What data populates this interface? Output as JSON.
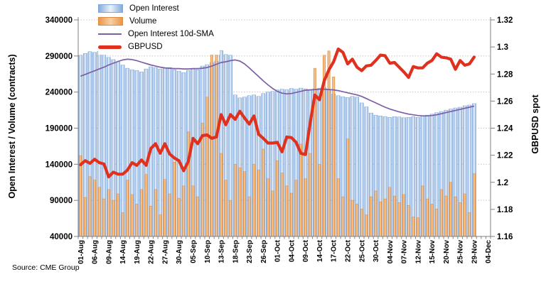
{
  "source": "Source: CME Group",
  "chart_data": {
    "type": "combo",
    "subtype": "bars+lines, dual y-axes",
    "grid": "horizontal-dotted",
    "legend_position": "top-left-inside",
    "axes": {
      "left": {
        "label": "Open Interest / Volume (contracts)",
        "min": 40000,
        "max": 340000,
        "step": 50000,
        "tick_labels": [
          "340000",
          "290000",
          "240000",
          "190000",
          "140000",
          "90000",
          "40000"
        ]
      },
      "right": {
        "label": "GBPUSD spot",
        "min": 1.16,
        "max": 1.32,
        "step": 0.02,
        "tick_labels": [
          "1.32",
          "1.3",
          "1.28",
          "1.26",
          "1.24",
          "1.22",
          "1.2",
          "1.18",
          "1.16"
        ]
      }
    },
    "x_axis": {
      "tick_labels": [
        "01-Aug",
        "06-Aug",
        "09-Aug",
        "14-Aug",
        "19-Aug",
        "22-Aug",
        "27-Aug",
        "30-Aug",
        "05-Sep",
        "10-Sep",
        "13-Sep",
        "18-Sep",
        "23-Sep",
        "26-Sep",
        "01-Oct",
        "04-Oct",
        "09-Oct",
        "14-Oct",
        "17-Oct",
        "22-Oct",
        "25-Oct",
        "30-Oct",
        "04-Nov",
        "07-Nov",
        "12-Nov",
        "15-Nov",
        "20-Nov",
        "25-Nov",
        "29-Nov",
        "04-Dec"
      ],
      "label_every": 3,
      "total_slots": 88
    },
    "categories": [
      "01-Aug",
      "02-Aug",
      "05-Aug",
      "06-Aug",
      "07-Aug",
      "08-Aug",
      "09-Aug",
      "12-Aug",
      "13-Aug",
      "14-Aug",
      "15-Aug",
      "16-Aug",
      "19-Aug",
      "20-Aug",
      "21-Aug",
      "22-Aug",
      "23-Aug",
      "26-Aug",
      "27-Aug",
      "28-Aug",
      "29-Aug",
      "30-Aug",
      "03-Sep",
      "04-Sep",
      "05-Sep",
      "06-Sep",
      "09-Sep",
      "10-Sep",
      "11-Sep",
      "12-Sep",
      "13-Sep",
      "16-Sep",
      "17-Sep",
      "18-Sep",
      "19-Sep",
      "20-Sep",
      "23-Sep",
      "24-Sep",
      "25-Sep",
      "26-Sep",
      "27-Sep",
      "30-Sep",
      "01-Oct",
      "02-Oct",
      "03-Oct",
      "04-Oct",
      "07-Oct",
      "08-Oct",
      "09-Oct",
      "10-Oct",
      "11-Oct",
      "14-Oct",
      "15-Oct",
      "16-Oct",
      "17-Oct",
      "18-Oct",
      "21-Oct",
      "22-Oct",
      "23-Oct",
      "24-Oct",
      "25-Oct",
      "28-Oct",
      "29-Oct",
      "30-Oct",
      "31-Oct",
      "01-Nov",
      "04-Nov",
      "05-Nov",
      "06-Nov",
      "07-Nov",
      "08-Nov",
      "11-Nov",
      "12-Nov",
      "13-Nov",
      "14-Nov",
      "15-Nov",
      "18-Nov",
      "19-Nov",
      "20-Nov",
      "21-Nov",
      "22-Nov",
      "25-Nov",
      "26-Nov",
      "27-Nov",
      "29-Nov"
    ],
    "series": [
      {
        "name": "Open Interest",
        "type": "bar",
        "axis": "left",
        "color": "#86ACDC",
        "values": [
          291000,
          293500,
          296000,
          295000,
          296500,
          294000,
          288000,
          285000,
          282000,
          277500,
          273000,
          271000,
          270000,
          268000,
          272000,
          275000,
          274000,
          272000,
          273000,
          274000,
          271000,
          269000,
          267000,
          270000,
          272000,
          271000,
          276000,
          278000,
          281000,
          283000,
          297500,
          292000,
          291000,
          236000,
          232000,
          233000,
          235000,
          236000,
          234000,
          238000,
          240000,
          241000,
          243000,
          244000,
          243500,
          245000,
          244000,
          245500,
          244500,
          243500,
          244500,
          245500,
          246000,
          243500,
          237500,
          235000,
          233500,
          232500,
          234000,
          233000,
          225000,
          219500,
          211000,
          208000,
          207000,
          206000,
          205000,
          206000,
          205500,
          204500,
          205000,
          206000,
          205000,
          207000,
          208000,
          209500,
          211500,
          213000,
          215000,
          216500,
          218000,
          219000,
          221000,
          222000,
          224000
        ]
      },
      {
        "name": "Volume",
        "type": "bar",
        "axis": "left",
        "color": "#E8964B",
        "values": [
          152000,
          94000,
          123000,
          118000,
          108000,
          92000,
          105000,
          90000,
          99000,
          73000,
          118000,
          98000,
          85000,
          105000,
          126000,
          82000,
          105000,
          70000,
          119000,
          99000,
          143000,
          93000,
          110000,
          185000,
          110000,
          95000,
          197000,
          233000,
          297000,
          297000,
          155000,
          118000,
          90000,
          140000,
          135000,
          130000,
          95000,
          140000,
          132000,
          161000,
          120000,
          103000,
          145000,
          128000,
          110000,
          100000,
          118000,
          168000,
          120000,
          155000,
          273000,
          140000,
          291000,
          297000,
          261000,
          120000,
          95000,
          175000,
          90000,
          85000,
          78000,
          70000,
          95000,
          103000,
          88000,
          92000,
          108000,
          96000,
          87000,
          98000,
          83000,
          67000,
          66000,
          110000,
          92000,
          85000,
          78000,
          105000,
          96000,
          115000,
          95000,
          87000,
          99000,
          73000,
          127000
        ]
      },
      {
        "name": "Open Interest 10d-SMA",
        "type": "line",
        "axis": "left",
        "color": "#7C5FA5",
        "values": [
          262000,
          264500,
          267000,
          269500,
          272000,
          274500,
          277500,
          280000,
          282500,
          284500,
          285500,
          285000,
          283500,
          281500,
          279500,
          277500,
          276000,
          274500,
          273500,
          273000,
          272500,
          272500,
          272000,
          272000,
          272500,
          272500,
          273000,
          274000,
          276000,
          278500,
          281000,
          282000,
          283500,
          284500,
          283000,
          279000,
          273500,
          267500,
          261500,
          255500,
          250000,
          245000,
          241000,
          238500,
          237500,
          238000,
          239500,
          241000,
          242500,
          243000,
          243500,
          244000,
          244000,
          243500,
          243000,
          242000,
          240500,
          239000,
          237500,
          236000,
          234000,
          231000,
          228000,
          225000,
          222000,
          219000,
          216500,
          214500,
          212500,
          211000,
          209500,
          208500,
          207500,
          207000,
          207000,
          207500,
          208500,
          210000,
          211500,
          213000,
          214500,
          216000,
          217500,
          219000,
          220500
        ]
      },
      {
        "name": "GBPUSD",
        "type": "line",
        "axis": "right",
        "color": "#E0301E",
        "values": [
          1.213,
          1.216,
          1.214,
          1.217,
          1.2145,
          1.2135,
          1.204,
          1.2075,
          1.206,
          1.206,
          1.209,
          1.2145,
          1.2125,
          1.2165,
          1.2125,
          1.225,
          1.2285,
          1.2215,
          1.2285,
          1.221,
          1.218,
          1.216,
          1.2085,
          1.2155,
          1.2325,
          1.2285,
          1.2345,
          1.235,
          1.2325,
          1.2335,
          1.25,
          1.2425,
          1.25,
          1.2465,
          1.2525,
          1.2475,
          1.243,
          1.249,
          1.2355,
          1.2325,
          1.229,
          1.229,
          1.2295,
          1.2225,
          1.2335,
          1.233,
          1.2295,
          1.2215,
          1.2205,
          1.244,
          1.2645,
          1.261,
          1.275,
          1.283,
          1.289,
          1.2985,
          1.296,
          1.2875,
          1.291,
          1.285,
          1.2825,
          1.286,
          1.2865,
          1.29,
          1.294,
          1.2935,
          1.288,
          1.2885,
          1.285,
          1.2815,
          1.2775,
          1.2855,
          1.2845,
          1.2845,
          1.288,
          1.29,
          1.295,
          1.2925,
          1.292,
          1.291,
          1.2835,
          1.29,
          1.2865,
          1.2875,
          1.2925
        ]
      }
    ],
    "ylabel_left": "Open Interest / Volume (contracts)",
    "ylabel_right": "GBPUSD spot"
  }
}
